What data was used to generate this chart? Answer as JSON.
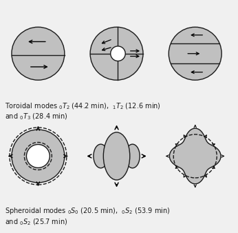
{
  "bg_color": "#e8e8e8",
  "circle_face_color": "#c0c0c0",
  "circle_edge_color": "#1a1a1a",
  "white_color": "#ffffff",
  "text_color": "#1a1a1a",
  "toroidal_modes_text": "Toroidal modes $_{0}T_{2}$ (44.2 min),  $_{1}T_{2}$ (12.6 min)\nand $_{0}T_{3}$ (28.4 min)",
  "spheroidal_modes_text": "Spheroidal modes $_{0}S_{0}$ (20.5 min),  $_{0}S_{2}$ (53.9 min)\nand $_{0}S_{2}$ (25.7 min)",
  "font_size": 7.0
}
